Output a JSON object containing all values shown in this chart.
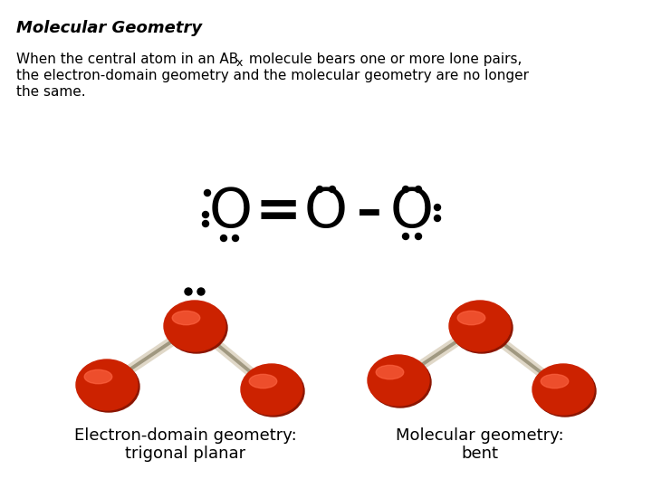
{
  "title": "Molecular Geometry",
  "background_color": "#ffffff",
  "atom_color_dark": "#8B1500",
  "atom_color_mid": "#CC2200",
  "atom_color_light": "#FF6644",
  "bond_color_light": "#E0D8C8",
  "bond_color_dark": "#A09880",
  "label1_line1": "Electron-domain geometry:",
  "label1_line2": "trigonal planar",
  "label2_line1": "Molecular geometry:",
  "label2_line2": "bent",
  "dot_color": "#000000",
  "dot_r": 3.5,
  "o_fontsize": 44,
  "title_fontsize": 13,
  "para_fontsize": 11,
  "label_fontsize": 13
}
